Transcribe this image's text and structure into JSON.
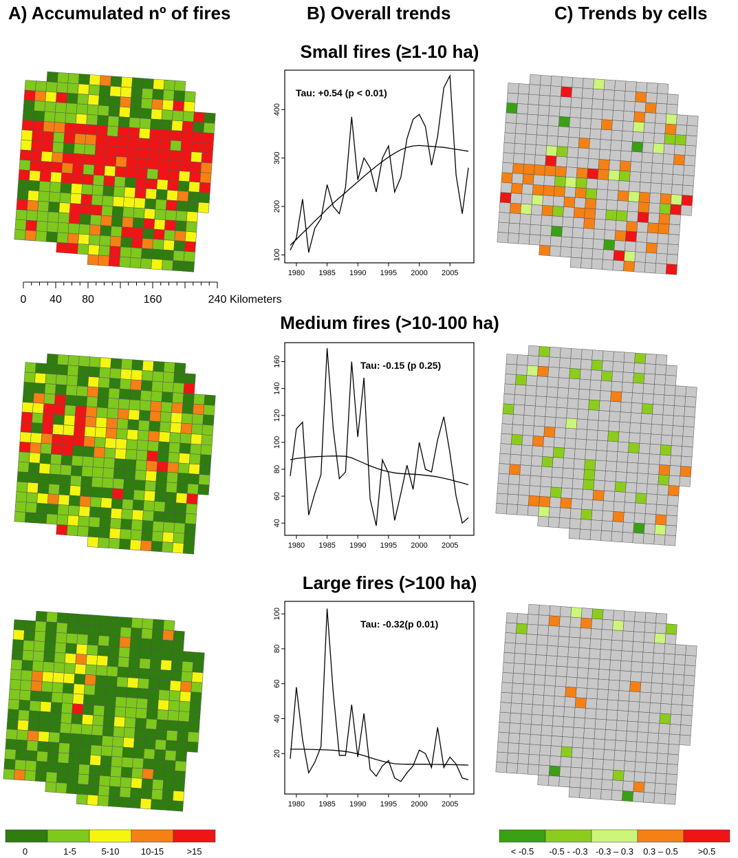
{
  "column_titles": {
    "a": "A) Accumulated nº of fires",
    "b": "B) Overall trends",
    "c": "C) Trends by cells"
  },
  "row_titles": {
    "small": "Small fires (≥1-10 ha)",
    "medium": "Medium fires (>10-100 ha)",
    "large": "Large fires (>100 ha)"
  },
  "scale_bar": {
    "ticks": [
      "0",
      "40",
      "80",
      "160",
      "240"
    ],
    "unit": "Kilometers"
  },
  "legend_a": {
    "items": [
      {
        "label": "0",
        "color": "#2e7d0e"
      },
      {
        "label": "1-5",
        "color": "#7fc81c"
      },
      {
        "label": "5-10",
        "color": "#f5f50f"
      },
      {
        "label": "10-15",
        "color": "#f58014"
      },
      {
        "label": ">15",
        "color": "#f01414"
      }
    ]
  },
  "legend_c": {
    "items": [
      {
        "label": "< -0.5",
        "color": "#3aa014"
      },
      {
        "label": "-0.5 - -0.3",
        "color": "#8ccc1c"
      },
      {
        "label": "-0.3 – 0.3",
        "color": "#ccf57a"
      },
      {
        "label": "0.3 – 0.5",
        "color": "#f58014"
      },
      {
        "label": ">0.5",
        "color": "#f01414"
      }
    ],
    "neutral_color": "#c8c8c8"
  },
  "chart_data": [
    {
      "type": "line",
      "name": "small",
      "annotation": "Tau: +0.54 (p < 0.01)",
      "x": [
        1979,
        1980,
        1981,
        1982,
        1983,
        1984,
        1985,
        1986,
        1987,
        1988,
        1989,
        1990,
        1991,
        1992,
        1993,
        1994,
        1995,
        1996,
        1997,
        1998,
        1999,
        2000,
        2001,
        2002,
        2003,
        2004,
        2005,
        2006,
        2007,
        2008
      ],
      "values": [
        110,
        135,
        215,
        105,
        155,
        175,
        245,
        200,
        185,
        240,
        385,
        255,
        300,
        280,
        230,
        300,
        325,
        230,
        260,
        340,
        380,
        390,
        365,
        285,
        345,
        445,
        470,
        265,
        185,
        280
      ],
      "trend": [
        120,
        132,
        145,
        157,
        170,
        182,
        195,
        207,
        218,
        229,
        240,
        251,
        262,
        273,
        283,
        293,
        302,
        310,
        317,
        322,
        325,
        326,
        325,
        324,
        323,
        322,
        320,
        318,
        316,
        314
      ],
      "ylim": [
        95,
        470
      ],
      "yticks": [
        100,
        200,
        300,
        400
      ],
      "xticks": [
        1980,
        1985,
        1990,
        1995,
        2000,
        2005
      ]
    },
    {
      "type": "line",
      "name": "medium",
      "annotation": "Tau: -0.15 (p 0.25)",
      "x": [
        1979,
        1980,
        1981,
        1982,
        1983,
        1984,
        1985,
        1986,
        1987,
        1988,
        1989,
        1990,
        1991,
        1992,
        1993,
        1994,
        1995,
        1996,
        1997,
        1998,
        1999,
        2000,
        2001,
        2002,
        2003,
        2004,
        2005,
        2006,
        2007,
        2008
      ],
      "values": [
        75,
        110,
        115,
        46,
        62,
        76,
        170,
        110,
        73,
        78,
        160,
        104,
        148,
        58,
        38,
        87,
        77,
        42,
        62,
        83,
        65,
        100,
        80,
        78,
        102,
        119,
        92,
        60,
        40,
        44
      ],
      "trend": [
        87,
        88,
        88.5,
        89,
        89.3,
        89.5,
        89.7,
        89.8,
        89.8,
        89.6,
        88.5,
        86.5,
        84.5,
        82.5,
        80.8,
        79.3,
        78.2,
        77.3,
        76.8,
        76.5,
        76.3,
        76,
        75.5,
        75,
        74.3,
        73.3,
        72.3,
        71,
        69.8,
        68.5
      ],
      "ylim": [
        35,
        170
      ],
      "yticks": [
        40,
        60,
        80,
        100,
        120,
        140,
        160
      ],
      "xticks": [
        1980,
        1985,
        1990,
        1995,
        2000,
        2005
      ]
    },
    {
      "type": "line",
      "name": "large",
      "annotation": "Tau: -0.32(p 0.01)",
      "x": [
        1979,
        1980,
        1981,
        1982,
        1983,
        1984,
        1985,
        1986,
        1987,
        1988,
        1989,
        1990,
        1991,
        1992,
        1993,
        1994,
        1995,
        1996,
        1997,
        1998,
        1999,
        2000,
        2001,
        2002,
        2003,
        2004,
        2005,
        2006,
        2007,
        2008
      ],
      "values": [
        17,
        58,
        28,
        9,
        15,
        24,
        103,
        55,
        19,
        19,
        48,
        18,
        43,
        11,
        7,
        13,
        16,
        6,
        4,
        9,
        13,
        22,
        20,
        12,
        35,
        12,
        18,
        14,
        6,
        5
      ],
      "trend": [
        22.5,
        22.5,
        22.5,
        22.4,
        22.3,
        22.2,
        22.1,
        21.9,
        21.6,
        21.2,
        20.6,
        19.8,
        18.8,
        17.7,
        16.6,
        15.6,
        14.8,
        14.2,
        14,
        13.9,
        13.9,
        13.9,
        13.9,
        13.8,
        13.8,
        13.7,
        13.7,
        13.6,
        13.5,
        13.4
      ],
      "ylim": [
        0,
        104
      ],
      "yticks": [
        20,
        40,
        60,
        80,
        100
      ],
      "xticks": [
        1980,
        1985,
        1990,
        1995,
        2000,
        2005
      ]
    }
  ]
}
